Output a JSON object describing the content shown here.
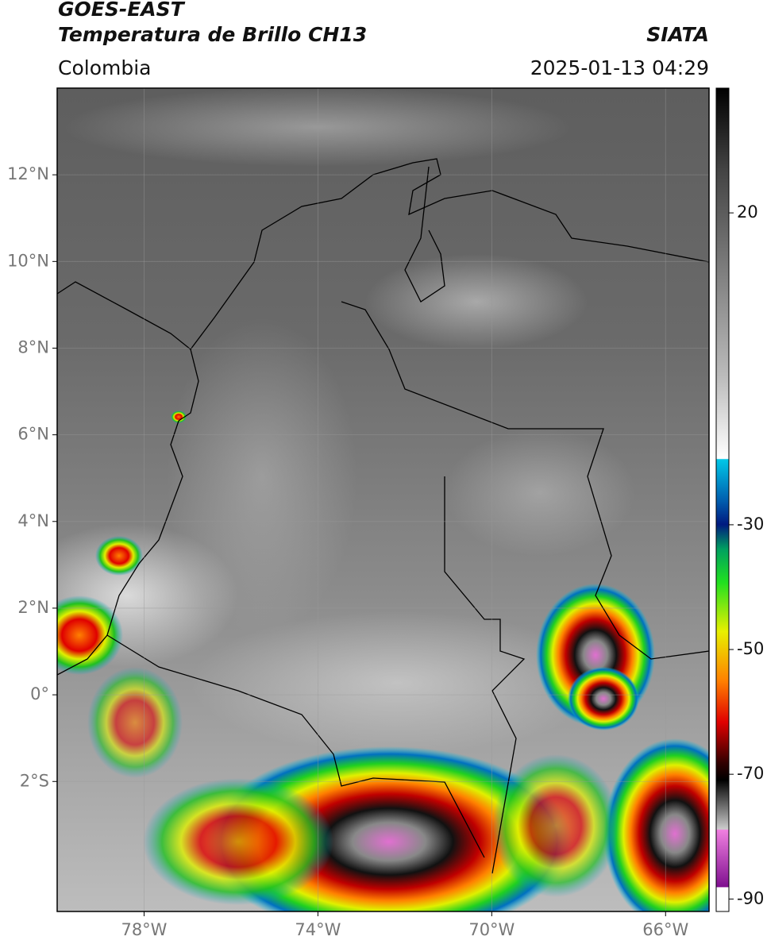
{
  "header": {
    "title": "GOES-EAST",
    "subtitle": "Temperatura de Brillo CH13",
    "source": "SIATA",
    "region": "Colombia",
    "datetime": "2025-01-13 04:29"
  },
  "map": {
    "xlim": [
      -80,
      -65
    ],
    "ylim": [
      -5,
      14
    ],
    "xticks": [
      {
        "value": -78,
        "label": "78°W"
      },
      {
        "value": -74,
        "label": "74°W"
      },
      {
        "value": -70,
        "label": "70°W"
      },
      {
        "value": -66,
        "label": "66°W"
      }
    ],
    "yticks": [
      {
        "value": 12,
        "label": "12°N"
      },
      {
        "value": 10,
        "label": "10°N"
      },
      {
        "value": 8,
        "label": "8°N"
      },
      {
        "value": 6,
        "label": "6°N"
      },
      {
        "value": 4,
        "label": "4°N"
      },
      {
        "value": 2,
        "label": "2°N"
      },
      {
        "value": 0,
        "label": "0°"
      },
      {
        "value": -2,
        "label": "2°S"
      }
    ],
    "grid": true
  },
  "colorbar": {
    "lim": [
      -92,
      40
    ],
    "ticks": [
      20,
      -30,
      -50,
      -70,
      -90
    ]
  }
}
